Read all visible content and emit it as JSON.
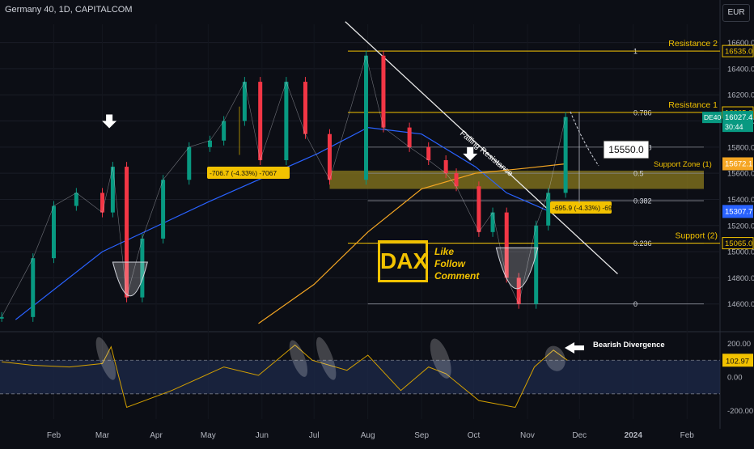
{
  "header": {
    "title": "Germany 40, 1D, CAPITALCOM",
    "currency": "EUR"
  },
  "branding": {
    "logo_text": "DAX",
    "cta": [
      "Like",
      "Follow",
      "Comment"
    ]
  },
  "chart_data": {
    "type": "line",
    "title": "Germany 40, 1D, CAPITALCOM",
    "xlabel": "",
    "ylabel": "",
    "ylim": [
      14400,
      16740
    ],
    "x_tick_labels": [
      "Feb",
      "Mar",
      "Apr",
      "May",
      "Jun",
      "Jul",
      "Aug",
      "Sep",
      "Oct",
      "Nov",
      "Dec",
      "2024",
      "Feb"
    ],
    "y_tick_labels": [
      16600,
      16400,
      16200,
      16000,
      15800,
      15600,
      15400,
      15200,
      15000,
      14800,
      14600
    ],
    "price_series": {
      "name": "DE40",
      "x": [
        "2023-01-02",
        "2023-01-20",
        "2023-02-01",
        "2023-02-14",
        "2023-03-01",
        "2023-03-07",
        "2023-03-15",
        "2023-03-24",
        "2023-04-05",
        "2023-04-20",
        "2023-05-02",
        "2023-05-10",
        "2023-05-22",
        "2023-05-31",
        "2023-06-15",
        "2023-06-26",
        "2023-07-10",
        "2023-07-31",
        "2023-08-10",
        "2023-08-25",
        "2023-09-05",
        "2023-09-15",
        "2023-09-21",
        "2023-10-04",
        "2023-10-12",
        "2023-10-20",
        "2023-10-27",
        "2023-11-06",
        "2023-11-13",
        "2023-11-23"
      ],
      "y": [
        14500,
        14950,
        15350,
        15450,
        15300,
        15650,
        14650,
        15100,
        15550,
        15800,
        15850,
        16000,
        16300,
        15700,
        16300,
        15900,
        15550,
        16500,
        15950,
        15800,
        15700,
        15600,
        15500,
        15150,
        15300,
        14800,
        14600,
        15200,
        15450,
        16030
      ]
    },
    "moving_averages": [
      {
        "color": "#2962ff",
        "x": [
          "2023-01-10",
          "2023-03-01",
          "2023-05-01",
          "2023-07-03",
          "2023-08-01",
          "2023-09-01",
          "2023-10-02",
          "2023-10-20",
          "2023-11-15"
        ],
        "y": [
          14480,
          15000,
          15380,
          15750,
          15950,
          15900,
          15650,
          15450,
          15300
        ]
      },
      {
        "color": "#f5a623",
        "x": [
          "2023-05-30",
          "2023-07-01",
          "2023-08-01",
          "2023-09-01",
          "2023-10-02",
          "2023-11-01",
          "2023-11-23"
        ],
        "y": [
          14450,
          14750,
          15150,
          15480,
          15600,
          15640,
          15672
        ]
      }
    ],
    "fib_levels": [
      {
        "ratio": "1",
        "price": 16535
      },
      {
        "ratio": "0.786",
        "price": 16065
      },
      {
        "ratio": "0.618",
        "price": 15800
      },
      {
        "ratio": "0.5",
        "price": 15600
      },
      {
        "ratio": "0.382",
        "price": 15390
      },
      {
        "ratio": "0.236",
        "price": 15065
      },
      {
        "ratio": "0",
        "price": 14600
      }
    ],
    "levels": [
      {
        "name": "Resistance 2",
        "price": 16535,
        "label": "16535.0",
        "color": "#f2c200"
      },
      {
        "name": "Resistance 1",
        "price": 16065,
        "label": "16065.0",
        "color": "#f2c200"
      },
      {
        "name": "Support (2)",
        "price": 15065,
        "label": "15065.0",
        "color": "#f2c200"
      }
    ],
    "support_zone": {
      "name": "Support Zone (1)",
      "from": 15480,
      "to": 15620,
      "color": "#8a7a1e"
    },
    "price_labels": [
      {
        "text": "DE40",
        "value": "16027.4",
        "sub": "30:44",
        "price": 16027.4,
        "color": "#089981"
      },
      {
        "text": "",
        "value": "15672.1",
        "sub": "",
        "price": 15672.1,
        "color": "#f5a623"
      },
      {
        "text": "",
        "value": "15307.7",
        "sub": "",
        "price": 15307.7,
        "color": "#2962ff"
      }
    ],
    "annotations": [
      {
        "text": "Falling Resistance",
        "color": "#ffffff"
      },
      {
        "text": "-706.7 (-4.33%) -7067",
        "color": "#f2c200"
      },
      {
        "text": "-695.9 (-4.33%) -6959",
        "color": "#f2c200"
      },
      {
        "text": "15550.0",
        "color": "#ffffff"
      }
    ],
    "rsi": {
      "y_tick_labels": [
        200.0,
        100.0,
        0.0,
        -200.0
      ],
      "current_value": "102.97",
      "band": [
        100,
        -100
      ],
      "annotation": "Bearish Divergence",
      "x": [
        "2023-01-02",
        "2023-01-20",
        "2023-02-10",
        "2023-03-01",
        "2023-03-06",
        "2023-03-15",
        "2023-04-10",
        "2023-05-10",
        "2023-05-30",
        "2023-06-20",
        "2023-06-30",
        "2023-07-20",
        "2023-08-01",
        "2023-08-20",
        "2023-09-05",
        "2023-09-15",
        "2023-10-04",
        "2023-10-25",
        "2023-11-05",
        "2023-11-16",
        "2023-11-24"
      ],
      "y": [
        90,
        70,
        60,
        80,
        180,
        -180,
        -80,
        60,
        10,
        190,
        100,
        40,
        130,
        -80,
        60,
        20,
        -140,
        -180,
        60,
        160,
        100
      ]
    }
  }
}
